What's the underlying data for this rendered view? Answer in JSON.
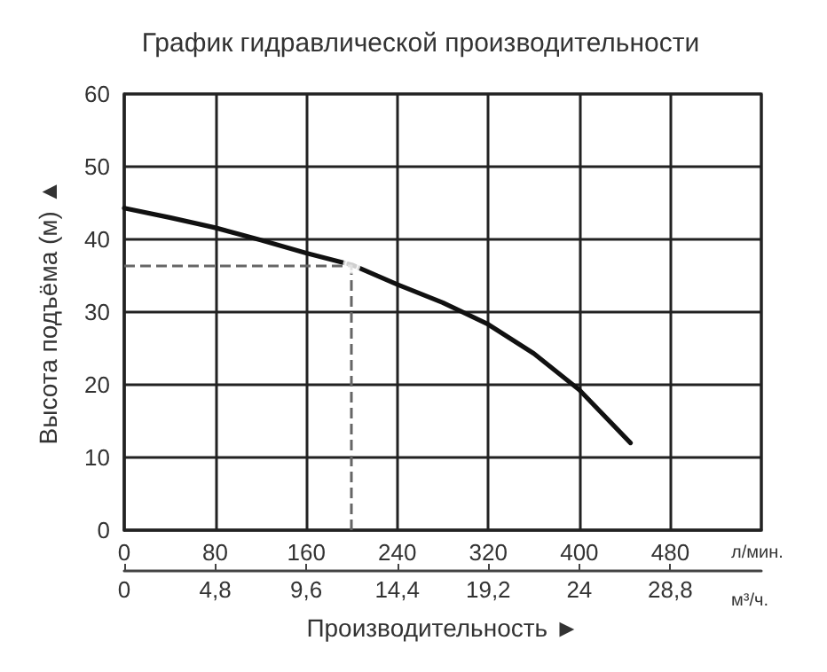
{
  "chart_data": {
    "type": "line",
    "title": "График гидравлической производительности",
    "xlabel": "Производительность ►",
    "ylabel": "Высота подъёма (м) ▲",
    "xlim": [
      0,
      560
    ],
    "xticks": [
      0,
      80,
      160,
      240,
      320,
      400,
      480
    ],
    "x2lim": [
      0,
      33.6
    ],
    "x2ticks": [
      0,
      {
        "value": 4.8,
        "label": "4,8"
      },
      {
        "value": 9.6,
        "label": "9,6"
      },
      {
        "value": 14.4,
        "label": "14,4"
      },
      {
        "value": 19.2,
        "label": "19,2"
      },
      24,
      {
        "value": 28.8,
        "label": "28,8"
      }
    ],
    "ylim": [
      0,
      60
    ],
    "yticks": [
      0,
      10,
      20,
      30,
      40,
      50,
      60
    ],
    "grid": true,
    "annotations": [
      "л/мин.",
      "м³/ч."
    ],
    "ref_lines": [
      {
        "axis": "x",
        "value": 200,
        "line_style": "dashed",
        "color": "#666666"
      },
      {
        "axis": "y",
        "value": 36.5,
        "line_style": "dashed",
        "color": "#666666"
      }
    ],
    "series": [
      {
        "color": "#111111",
        "marker": "none",
        "line_style": "solid",
        "x": [
          0,
          40,
          80,
          120,
          160,
          200,
          240,
          280,
          320,
          360,
          400,
          445
        ],
        "values": [
          44.3,
          43,
          41.6,
          39.9,
          38.1,
          36.5,
          33.8,
          31.3,
          28.3,
          24.3,
          19.3,
          12
        ]
      },
      {
        "type": "scatter",
        "color": "#ffffff",
        "marker": "circle",
        "x": [
          200
        ],
        "values": [
          36.5
        ]
      }
    ]
  }
}
